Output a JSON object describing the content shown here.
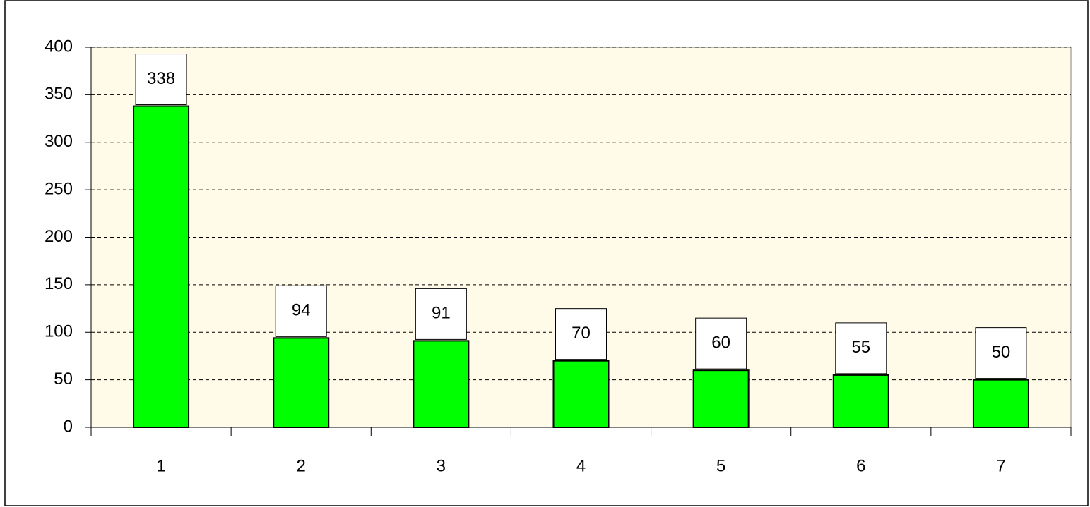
{
  "chart_data": {
    "type": "bar",
    "categories": [
      "1",
      "2",
      "3",
      "4",
      "5",
      "6",
      "7"
    ],
    "values": [
      338,
      94,
      91,
      70,
      60,
      55,
      50
    ],
    "color": "#00ff00",
    "ylim": [
      0,
      400
    ],
    "yticks": [
      0,
      50,
      100,
      150,
      200,
      250,
      300,
      350,
      400
    ],
    "grid": true
  }
}
